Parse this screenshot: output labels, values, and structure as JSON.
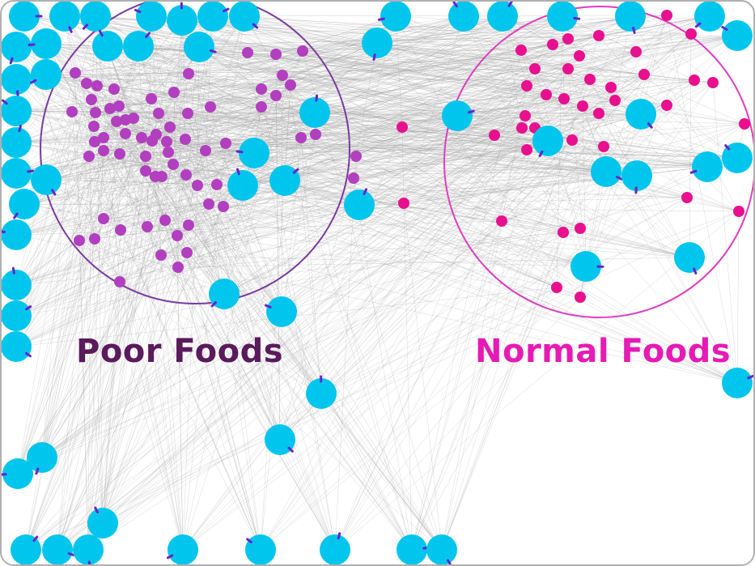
{
  "groups": {
    "poor": {
      "label": "Poor Foods",
      "color": "#5a1a5c",
      "ring_color": "#7a3aa0",
      "dot_color": "#b23fbf"
    },
    "normal": {
      "label": "Normal Foods",
      "color": "#e61ab5",
      "ring_color": "#e03cc0",
      "dot_color": "#e8108f"
    }
  },
  "hub_color": "#00c6ee",
  "hub_tick_color": "#6a22cc",
  "edge_color": "#9a9a9a",
  "frame_color": "#b0b0b0"
}
